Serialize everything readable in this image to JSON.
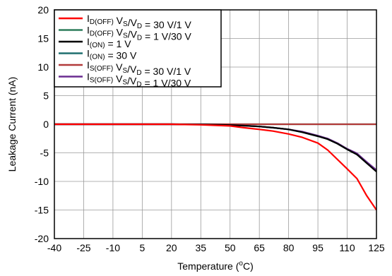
{
  "chart_data": {
    "type": "line",
    "title": "",
    "xlabel": "Temperature (°C)",
    "xlabel_parts": {
      "pre": "Temperature (",
      "sup": "o",
      "post": "C)"
    },
    "ylabel": "Leakage Current (nA)",
    "x_ticks": [
      "-40",
      "-25",
      "-10",
      "5",
      "20",
      "35",
      "50",
      "65",
      "80",
      "95",
      "110",
      "125"
    ],
    "y_ticks": [
      "20",
      "15",
      "10",
      "5",
      "0",
      "-5",
      "-10",
      "-15",
      "-20"
    ],
    "xlim": [
      -40,
      125
    ],
    "ylim": [
      -20,
      20
    ],
    "grid": true,
    "legend_position": "top-left",
    "series": [
      {
        "name": "I_D(OFF) V_S/V_D = 30 V/1 V",
        "label_parts": [
          {
            "t": "I"
          },
          {
            "t": "D(OFF)",
            "sub": true
          },
          {
            "t": " V"
          },
          {
            "t": "S",
            "sub": true
          },
          {
            "t": "/V"
          },
          {
            "t": "D",
            "sub": true
          },
          {
            "t": " = 30 V/1 V"
          }
        ],
        "color": "#ff0000",
        "x": [
          -40,
          -25,
          -10,
          5,
          20,
          35,
          50,
          57,
          65,
          72,
          80,
          87,
          95,
          100,
          110,
          115,
          120,
          125
        ],
        "y": [
          0,
          0,
          0,
          0,
          0,
          -0.1,
          -0.3,
          -0.6,
          -0.9,
          -1.2,
          -1.7,
          -2.3,
          -3.3,
          -4.5,
          -7.8,
          -9.5,
          -12.5,
          -15
        ]
      },
      {
        "name": "I_D(OFF) V_S/V_D = 1 V/30 V",
        "label_parts": [
          {
            "t": "I"
          },
          {
            "t": "D(OFF)",
            "sub": true
          },
          {
            "t": " V"
          },
          {
            "t": "S",
            "sub": true
          },
          {
            "t": "/V"
          },
          {
            "t": "D",
            "sub": true
          },
          {
            "t": " = 1 V/30 V"
          }
        ],
        "color": "#2e7d5b",
        "x": [
          -40,
          125
        ],
        "y": [
          0,
          0
        ]
      },
      {
        "name": "I_(ON) = 1 V",
        "label_parts": [
          {
            "t": "I"
          },
          {
            "t": "(ON)",
            "sub": true
          },
          {
            "t": " = 1 V"
          }
        ],
        "color": "#000000",
        "x": [
          -40,
          -25,
          -10,
          5,
          20,
          35,
          50,
          57,
          65,
          72,
          80,
          87,
          95,
          100,
          105,
          110,
          115,
          120,
          125
        ],
        "y": [
          0,
          0,
          0,
          0,
          0,
          -0.05,
          -0.15,
          -0.25,
          -0.4,
          -0.6,
          -0.9,
          -1.4,
          -2.1,
          -2.6,
          -3.4,
          -4.4,
          -5.3,
          -6.8,
          -8.3
        ]
      },
      {
        "name": "I_(ON) = 30 V",
        "label_parts": [
          {
            "t": "I"
          },
          {
            "t": "(ON)",
            "sub": true
          },
          {
            "t": " = 30 V"
          }
        ],
        "color": "#1f6f6f",
        "x": [
          -40,
          -25,
          -10,
          5,
          20,
          35,
          50,
          57,
          65,
          72,
          80,
          87,
          95,
          100,
          105,
          110,
          115,
          120,
          125
        ],
        "y": [
          0,
          0,
          0,
          0,
          0,
          -0.05,
          -0.15,
          -0.25,
          -0.4,
          -0.6,
          -0.9,
          -1.4,
          -2.1,
          -2.6,
          -3.4,
          -4.4,
          -5.3,
          -6.8,
          -8.1
        ]
      },
      {
        "name": "I_S(OFF) V_S/V_D = 30 V/1 V",
        "label_parts": [
          {
            "t": "I"
          },
          {
            "t": "S(OFF)",
            "sub": true
          },
          {
            "t": " V"
          },
          {
            "t": "S",
            "sub": true
          },
          {
            "t": "/V"
          },
          {
            "t": "D",
            "sub": true
          },
          {
            "t": " = 30 V/1 V"
          }
        ],
        "color": "#b23a3a",
        "x": [
          -40,
          125
        ],
        "y": [
          0,
          0
        ]
      },
      {
        "name": "I_S(OFF) V_S/V_D = 1 V/30 V",
        "label_parts": [
          {
            "t": "I"
          },
          {
            "t": "S(OFF)",
            "sub": true
          },
          {
            "t": " V"
          },
          {
            "t": "S",
            "sub": true
          },
          {
            "t": "/V"
          },
          {
            "t": "D",
            "sub": true
          },
          {
            "t": " = 1 V/30 V"
          }
        ],
        "color": "#6a2c91",
        "x": [
          -40,
          -25,
          -10,
          5,
          20,
          35,
          50,
          57,
          65,
          72,
          80,
          87,
          95,
          100,
          105,
          110,
          115,
          120,
          125
        ],
        "y": [
          0,
          0,
          0,
          0,
          0,
          -0.05,
          -0.15,
          -0.25,
          -0.4,
          -0.6,
          -0.9,
          -1.3,
          -2.0,
          -2.5,
          -3.3,
          -4.3,
          -5.1,
          -6.6,
          -8.0
        ]
      }
    ]
  }
}
